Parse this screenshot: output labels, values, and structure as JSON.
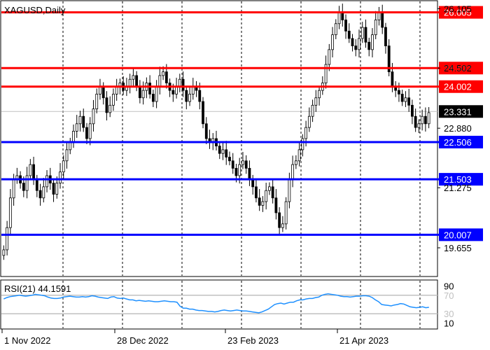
{
  "chart_data": [
    {
      "type": "candlestick",
      "title": "XAGUSD,Daily",
      "ylim": [
        18.9,
        26.3
      ],
      "x_ticks": [
        "1 Nov 2022",
        "28 Dec 2022",
        "23 Feb 2023",
        "21 Apr 2023"
      ],
      "y_ticks": [
        "26.105",
        "24.502",
        "22.880",
        "21.275",
        "19.655"
      ],
      "levels": [
        {
          "label": "26.005",
          "value": 26.005,
          "color": "#ff0000"
        },
        {
          "label": "24.502",
          "value": 24.502,
          "color": "#ff0000"
        },
        {
          "label": "24.002",
          "value": 24.002,
          "color": "#ff0000"
        },
        {
          "label": "22.506",
          "value": 22.506,
          "color": "#0000ff"
        },
        {
          "label": "21.503",
          "value": 21.503,
          "color": "#0000ff"
        },
        {
          "label": "20.007",
          "value": 20.007,
          "color": "#0000ff"
        }
      ],
      "current_price": {
        "label": "23.331",
        "value": 23.331
      },
      "close_values": [
        19.6,
        20.2,
        21.0,
        21.5,
        21.6,
        21.4,
        21.2,
        21.6,
        21.9,
        21.5,
        21.2,
        21.0,
        21.3,
        21.6,
        21.4,
        21.1,
        21.4,
        21.7,
        22.0,
        22.3,
        22.5,
        22.8,
        23.0,
        23.2,
        22.9,
        22.6,
        23.0,
        23.4,
        23.8,
        24.0,
        23.7,
        23.3,
        23.5,
        23.8,
        24.0,
        24.1,
        23.9,
        24.0,
        24.2,
        24.3,
        24.0,
        23.7,
        23.9,
        24.1,
        23.8,
        23.6,
        24.0,
        24.3,
        24.4,
        24.1,
        23.9,
        23.8,
        24.0,
        24.2,
        23.9,
        23.6,
        23.8,
        24.0,
        23.9,
        23.6,
        23.0,
        22.6,
        22.5,
        22.6,
        22.4,
        22.2,
        22.3,
        22.1,
        22.0,
        21.8,
        21.6,
        21.9,
        22.0,
        21.8,
        21.5,
        21.3,
        21.0,
        20.8,
        20.9,
        21.2,
        21.3,
        21.0,
        20.6,
        20.2,
        20.3,
        20.9,
        21.5,
        21.9,
        22.0,
        22.3,
        22.6,
        22.9,
        23.2,
        23.5,
        23.7,
        23.9,
        24.1,
        24.6,
        25.0,
        25.4,
        25.7,
        26.0,
        25.8,
        25.5,
        25.3,
        25.1,
        25.0,
        25.3,
        25.6,
        25.2,
        25.0,
        25.4,
        25.8,
        26.0,
        25.6,
        25.1,
        24.4,
        24.0,
        23.9,
        23.8,
        23.6,
        23.7,
        23.5,
        23.2,
        22.9,
        23.0,
        23.2,
        23.0,
        23.3
      ],
      "x_start": "1 Nov 2022"
    },
    {
      "type": "line",
      "title": "RSI(21) 44.1591",
      "ylim": [
        0,
        100
      ],
      "y_ticks": [
        "90",
        "70",
        "30",
        "10"
      ],
      "levels": [
        70,
        30
      ],
      "color": "#1e90ff",
      "values": [
        62,
        65,
        67,
        68,
        69,
        70,
        69,
        68,
        69,
        70,
        72,
        71,
        70,
        69,
        66,
        64,
        63,
        63,
        64,
        66,
        67,
        68,
        67,
        66,
        66,
        67,
        66,
        67,
        69,
        68,
        66,
        65,
        64,
        63,
        66,
        67,
        64,
        63,
        64,
        62,
        60,
        60,
        58,
        59,
        58,
        57,
        58,
        57,
        56,
        56,
        57,
        58,
        57,
        56,
        56,
        55,
        46,
        42,
        42,
        40,
        40,
        38,
        37,
        37,
        36,
        35,
        35,
        34,
        35,
        37,
        38,
        37,
        36,
        37,
        38,
        37,
        36,
        36,
        35,
        34,
        33,
        32,
        34,
        37,
        40,
        45,
        50,
        52,
        53,
        51,
        53,
        55,
        55,
        58,
        60,
        60,
        62,
        63,
        63,
        65,
        66,
        70,
        72,
        73,
        72,
        71,
        70,
        68,
        67,
        67,
        66,
        67,
        68,
        68,
        69,
        69,
        68,
        65,
        60,
        56,
        50,
        49,
        48,
        47,
        49,
        50,
        52,
        51,
        48,
        45,
        44,
        43,
        44,
        45,
        43,
        44
      ]
    }
  ]
}
